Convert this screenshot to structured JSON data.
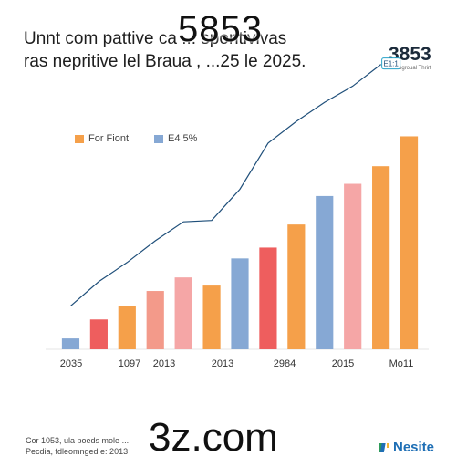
{
  "header": {
    "title_line1": "Unnt com pattive ca  ...  spontivivas",
    "title_line2": "ras nepritive lel Braua , ...25 le 2025.",
    "overlay_number": "5853",
    "side_number": "3853",
    "side_caption": "Prmogroual Thrirt"
  },
  "legend": {
    "items": [
      {
        "label": "For Fiont",
        "color": "#f5a04a"
      },
      {
        "label": "E4 5%",
        "color": "#86a8d4"
      }
    ]
  },
  "chart_data": {
    "type": "bar",
    "x_tick_labels": [
      "2035",
      "1097",
      "2013",
      "2013",
      "2984",
      "2015",
      "Mo11"
    ],
    "values": [
      8,
      22,
      32,
      43,
      53,
      47,
      67,
      75,
      92,
      113,
      122,
      135,
      157
    ],
    "bar_colors": [
      "#86a8d4",
      "#ee5e5e",
      "#f5a04a",
      "#f39a8a",
      "#f5a6a6",
      "#f5a04a",
      "#86a8d4",
      "#ee5e5e",
      "#f5a04a",
      "#86a8d4",
      "#f5a6a6",
      "#f5a04a",
      "#f5a04a"
    ],
    "line_values": [
      32,
      50,
      64,
      80,
      94,
      95,
      118,
      152,
      168,
      182,
      194,
      210
    ],
    "line_color": "#1f4f7a",
    "annotation": "E1:1",
    "ylim": [
      0,
      160
    ],
    "grid": false
  },
  "footer": {
    "note_line1": "Cor 1053, ula poeds mole ...",
    "note_line2": "Pecdia, fdleomnged e: 2013",
    "watermark": "3z.com",
    "brand_name": "Nesite",
    "brand_colors": [
      "#2e9b5a",
      "#1f6fb5",
      "#f2b632"
    ]
  }
}
